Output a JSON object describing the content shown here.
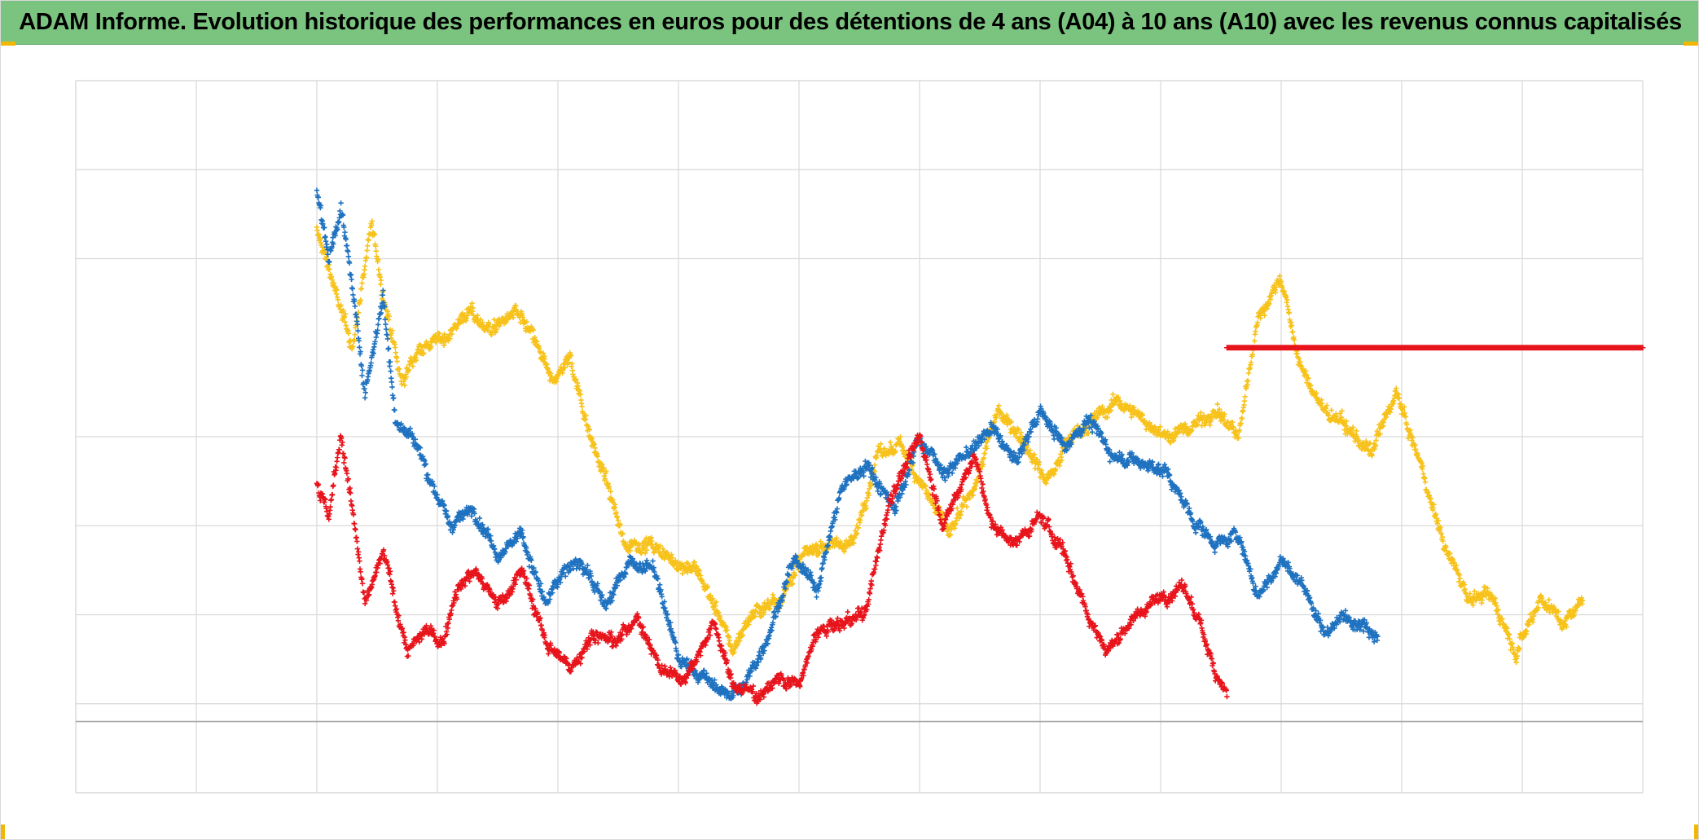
{
  "title": "ADAM Informe. Evolution historique des performances en euros pour des détentions de 4 ans (A04) à 10 ans (A10) avec les revenus connus capitalisés",
  "colors": {
    "header_bg": "#7bc47f",
    "grid": "#d9d9d9",
    "series_red": "#e8141c",
    "series_blue": "#1f72c0",
    "series_yellow": "#f7c21b",
    "corner_marks": "#f2b705"
  },
  "chart_data": {
    "type": "scatter",
    "marker": "plus",
    "xlim": [
      0,
      13
    ],
    "ylim": [
      0,
      8
    ],
    "grid": true,
    "x_gridlines": [
      1,
      2,
      3,
      4,
      5,
      6,
      7,
      8,
      9,
      10,
      11,
      12,
      13
    ],
    "y_gridlines": [
      1,
      2,
      3,
      4,
      6,
      7,
      8
    ],
    "y_axis_line": 0.8,
    "series": [
      {
        "name": "red",
        "color": "#e8141c",
        "anchors": [
          [
            2.0,
            3.5
          ],
          [
            2.1,
            3.1
          ],
          [
            2.2,
            4.0
          ],
          [
            2.25,
            3.6
          ],
          [
            2.4,
            2.1
          ],
          [
            2.55,
            2.7
          ],
          [
            2.75,
            1.6
          ],
          [
            2.9,
            1.8
          ],
          [
            3.05,
            1.7
          ],
          [
            3.15,
            2.3
          ],
          [
            3.3,
            2.5
          ],
          [
            3.5,
            2.1
          ],
          [
            3.7,
            2.5
          ],
          [
            3.9,
            1.7
          ],
          [
            4.1,
            1.4
          ],
          [
            4.3,
            1.8
          ],
          [
            4.5,
            1.7
          ],
          [
            4.65,
            2.0
          ],
          [
            4.85,
            1.4
          ],
          [
            5.05,
            1.3
          ],
          [
            5.3,
            1.9
          ],
          [
            5.45,
            1.2
          ],
          [
            5.65,
            1.1
          ],
          [
            5.85,
            1.3
          ],
          [
            6.0,
            1.2
          ],
          [
            6.15,
            1.8
          ],
          [
            6.35,
            1.9
          ],
          [
            6.55,
            2.0
          ],
          [
            6.75,
            3.3
          ],
          [
            7.0,
            4.0
          ],
          [
            7.2,
            3.0
          ],
          [
            7.45,
            3.8
          ],
          [
            7.6,
            3.0
          ],
          [
            7.8,
            2.8
          ],
          [
            8.0,
            3.1
          ],
          [
            8.2,
            2.7
          ],
          [
            8.4,
            2.0
          ],
          [
            8.55,
            1.6
          ],
          [
            8.8,
            2.0
          ],
          [
            9.0,
            2.2
          ],
          [
            9.2,
            2.3
          ],
          [
            9.35,
            1.8
          ],
          [
            9.45,
            1.4
          ],
          [
            9.55,
            1.1
          ]
        ],
        "band": 0.16
      },
      {
        "name": "blue",
        "color": "#1f72c0",
        "anchors": [
          [
            2.0,
            6.8
          ],
          [
            2.1,
            6.0
          ],
          [
            2.2,
            6.6
          ],
          [
            2.3,
            5.6
          ],
          [
            2.4,
            4.5
          ],
          [
            2.55,
            5.6
          ],
          [
            2.65,
            4.2
          ],
          [
            2.8,
            4.0
          ],
          [
            2.95,
            3.5
          ],
          [
            3.1,
            3.0
          ],
          [
            3.3,
            3.2
          ],
          [
            3.5,
            2.7
          ],
          [
            3.7,
            2.9
          ],
          [
            3.9,
            2.1
          ],
          [
            4.05,
            2.5
          ],
          [
            4.2,
            2.6
          ],
          [
            4.4,
            2.1
          ],
          [
            4.6,
            2.6
          ],
          [
            4.8,
            2.5
          ],
          [
            5.0,
            1.5
          ],
          [
            5.2,
            1.3
          ],
          [
            5.4,
            1.1
          ],
          [
            5.55,
            1.2
          ],
          [
            5.75,
            1.8
          ],
          [
            5.95,
            2.6
          ],
          [
            6.15,
            2.3
          ],
          [
            6.35,
            3.4
          ],
          [
            6.55,
            3.7
          ],
          [
            6.8,
            3.2
          ],
          [
            7.0,
            4.0
          ],
          [
            7.2,
            3.6
          ],
          [
            7.4,
            3.8
          ],
          [
            7.6,
            4.1
          ],
          [
            7.8,
            3.7
          ],
          [
            8.0,
            4.3
          ],
          [
            8.2,
            3.9
          ],
          [
            8.4,
            4.2
          ],
          [
            8.6,
            3.8
          ],
          [
            8.85,
            3.7
          ],
          [
            9.05,
            3.6
          ],
          [
            9.25,
            3.1
          ],
          [
            9.45,
            2.8
          ],
          [
            9.65,
            2.9
          ],
          [
            9.8,
            2.2
          ],
          [
            10.0,
            2.6
          ],
          [
            10.2,
            2.3
          ],
          [
            10.35,
            1.8
          ],
          [
            10.55,
            2.0
          ],
          [
            10.7,
            1.9
          ],
          [
            10.8,
            1.8
          ]
        ],
        "band": 0.17
      },
      {
        "name": "yellow",
        "color": "#f7c21b",
        "anchors": [
          [
            2.0,
            6.3
          ],
          [
            2.1,
            5.9
          ],
          [
            2.2,
            5.4
          ],
          [
            2.3,
            5.0
          ],
          [
            2.45,
            6.4
          ],
          [
            2.55,
            5.6
          ],
          [
            2.7,
            4.6
          ],
          [
            2.85,
            5.0
          ],
          [
            3.05,
            5.1
          ],
          [
            3.25,
            5.4
          ],
          [
            3.45,
            5.2
          ],
          [
            3.65,
            5.4
          ],
          [
            3.8,
            5.1
          ],
          [
            3.95,
            4.6
          ],
          [
            4.1,
            4.9
          ],
          [
            4.25,
            4.1
          ],
          [
            4.4,
            3.5
          ],
          [
            4.55,
            2.8
          ],
          [
            4.75,
            2.8
          ],
          [
            4.95,
            2.6
          ],
          [
            5.15,
            2.5
          ],
          [
            5.3,
            2.1
          ],
          [
            5.45,
            1.6
          ],
          [
            5.6,
            2.0
          ],
          [
            5.85,
            2.2
          ],
          [
            6.05,
            2.7
          ],
          [
            6.25,
            2.8
          ],
          [
            6.45,
            2.8
          ],
          [
            6.65,
            3.8
          ],
          [
            6.85,
            3.9
          ],
          [
            7.05,
            3.4
          ],
          [
            7.25,
            2.9
          ],
          [
            7.45,
            3.4
          ],
          [
            7.65,
            4.3
          ],
          [
            7.85,
            4.0
          ],
          [
            8.05,
            3.5
          ],
          [
            8.25,
            4.0
          ],
          [
            8.45,
            4.2
          ],
          [
            8.65,
            4.4
          ],
          [
            8.85,
            4.2
          ],
          [
            9.05,
            4.0
          ],
          [
            9.25,
            4.1
          ],
          [
            9.45,
            4.3
          ],
          [
            9.65,
            4.0
          ],
          [
            9.8,
            5.3
          ],
          [
            10.0,
            5.8
          ],
          [
            10.15,
            4.8
          ],
          [
            10.35,
            4.3
          ],
          [
            10.55,
            4.1
          ],
          [
            10.75,
            3.8
          ],
          [
            10.95,
            4.5
          ],
          [
            11.15,
            3.7
          ],
          [
            11.35,
            2.8
          ],
          [
            11.55,
            2.2
          ],
          [
            11.75,
            2.2
          ],
          [
            11.95,
            1.6
          ],
          [
            12.15,
            2.2
          ],
          [
            12.35,
            1.9
          ],
          [
            12.5,
            2.2
          ]
        ],
        "band": 0.18
      },
      {
        "name": "red-flat",
        "color": "#e8141c",
        "x_range": [
          9.55,
          13.0
        ],
        "value": 5.0
      }
    ]
  }
}
